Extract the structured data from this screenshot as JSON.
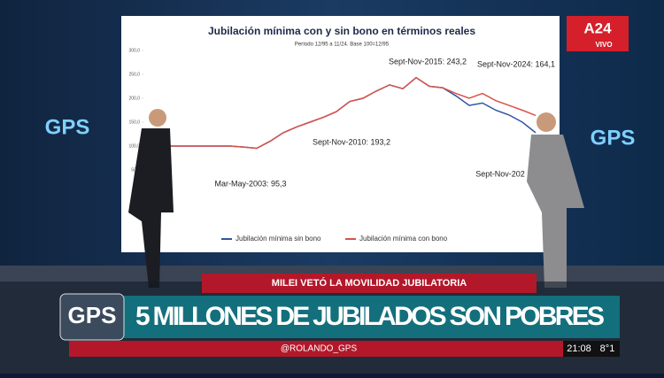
{
  "studio": {
    "wall_logo_left": "GPS",
    "wall_logo_right": "GPS"
  },
  "channel": {
    "logo": "A24",
    "live": "VIVO"
  },
  "screen_chart": {
    "type": "line",
    "title": "Jubilación mínima con y sin bono en términos reales",
    "subtitle": "Período 12/95 a 11/24. Base 100=12/95",
    "ylim": [
      0,
      300
    ],
    "yticks": [
      {
        "value": 0,
        "label": "0,0"
      },
      {
        "value": 50,
        "label": "50,0"
      },
      {
        "value": 100,
        "label": "100,0"
      },
      {
        "value": 150,
        "label": "150,0"
      },
      {
        "value": 200,
        "label": "200,0"
      },
      {
        "value": 250,
        "label": "250,0"
      },
      {
        "value": 300,
        "label": "300,0"
      }
    ],
    "series": [
      {
        "name": "Jubilación mínima sin bono",
        "color": "#2f55a4",
        "values": [
          100,
          100,
          100,
          100,
          100,
          100,
          98,
          95.3,
          110,
          128,
          140,
          150,
          160,
          172,
          193.2,
          200,
          215,
          228,
          220,
          243.2,
          225,
          222,
          205,
          185,
          190,
          175,
          165,
          150,
          128
        ]
      },
      {
        "name": "Jubilación mínima con bono",
        "color": "#d9534a",
        "values": [
          100,
          100,
          100,
          100,
          100,
          100,
          98,
          95.3,
          110,
          128,
          140,
          150,
          160,
          172,
          193.2,
          200,
          215,
          228,
          220,
          243.2,
          225,
          222,
          210,
          200,
          210,
          195,
          185,
          175,
          164.1
        ]
      }
    ],
    "annotations": [
      "Mar-May-2003: 95,3",
      "Sept-Nov-2010: 193,2",
      "Sept-Nov-2015: 243,2",
      "Sept-Nov-2024: 164,1",
      "Sept-Nov-202"
    ]
  },
  "lower_third": {
    "kicker": "MILEI VETÓ LA MOVILIDAD JUBILATORIA",
    "logo": "GPS",
    "headline": "5 MILLONES DE JUBILADOS SON POBRES",
    "handle": "@ROLANDO_GPS",
    "time": "21:08",
    "temperature": "8°1"
  }
}
